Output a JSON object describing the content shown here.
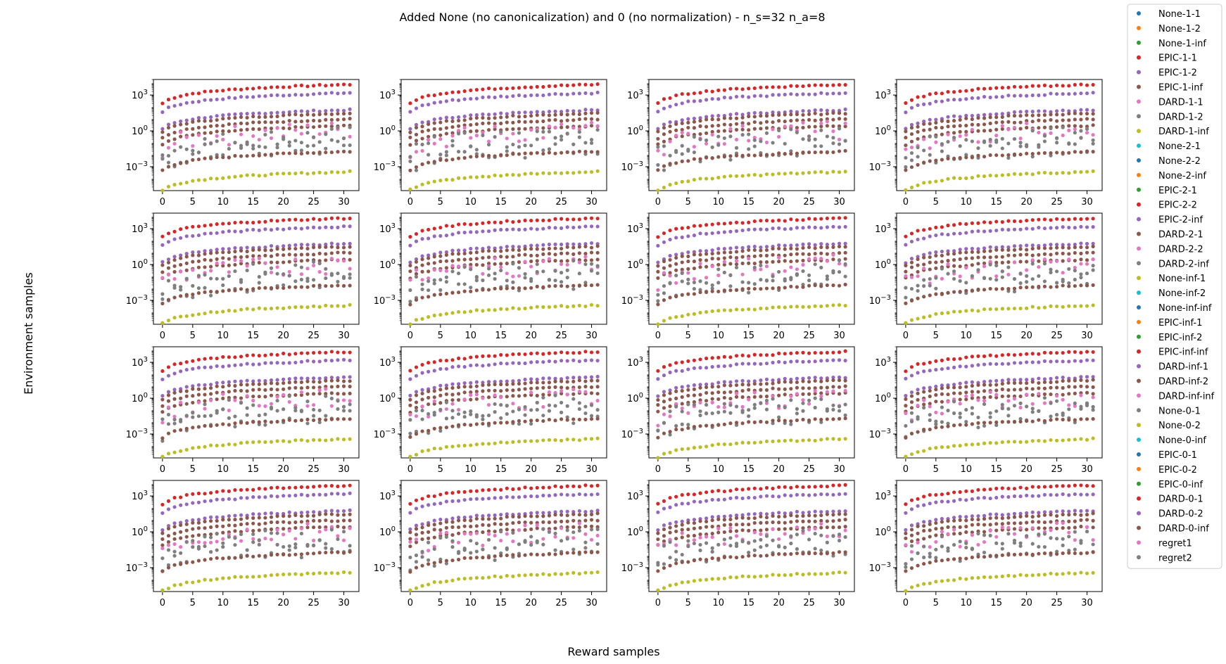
{
  "figure": {
    "title": "Added None (no canonicalization) and 0 (no normalization) - n_s=32 n_a=8",
    "xlabel": "Reward samples",
    "ylabel": "Environment samples"
  },
  "legend": {
    "placement": "top-right",
    "items": [
      {
        "label": "None-1-1",
        "color": "#1f77b4"
      },
      {
        "label": "None-1-2",
        "color": "#ff7f0e"
      },
      {
        "label": "None-1-inf",
        "color": "#2ca02c"
      },
      {
        "label": "EPIC-1-1",
        "color": "#d62728"
      },
      {
        "label": "EPIC-1-2",
        "color": "#9467bd"
      },
      {
        "label": "EPIC-1-inf",
        "color": "#8c564b"
      },
      {
        "label": "DARD-1-1",
        "color": "#e377c2"
      },
      {
        "label": "DARD-1-2",
        "color": "#7f7f7f"
      },
      {
        "label": "DARD-1-inf",
        "color": "#bcbd22"
      },
      {
        "label": "None-2-1",
        "color": "#17becf"
      },
      {
        "label": "None-2-2",
        "color": "#1f77b4"
      },
      {
        "label": "None-2-inf",
        "color": "#ff7f0e"
      },
      {
        "label": "EPIC-2-1",
        "color": "#2ca02c"
      },
      {
        "label": "EPIC-2-2",
        "color": "#d62728"
      },
      {
        "label": "EPIC-2-inf",
        "color": "#9467bd"
      },
      {
        "label": "DARD-2-1",
        "color": "#8c564b"
      },
      {
        "label": "DARD-2-2",
        "color": "#e377c2"
      },
      {
        "label": "DARD-2-inf",
        "color": "#7f7f7f"
      },
      {
        "label": "None-inf-1",
        "color": "#bcbd22"
      },
      {
        "label": "None-inf-2",
        "color": "#17becf"
      },
      {
        "label": "None-inf-inf",
        "color": "#1f77b4"
      },
      {
        "label": "EPIC-inf-1",
        "color": "#ff7f0e"
      },
      {
        "label": "EPIC-inf-2",
        "color": "#2ca02c"
      },
      {
        "label": "EPIC-inf-inf",
        "color": "#d62728"
      },
      {
        "label": "DARD-inf-1",
        "color": "#9467bd"
      },
      {
        "label": "DARD-inf-2",
        "color": "#8c564b"
      },
      {
        "label": "DARD-inf-inf",
        "color": "#e377c2"
      },
      {
        "label": "None-0-1",
        "color": "#7f7f7f"
      },
      {
        "label": "None-0-2",
        "color": "#bcbd22"
      },
      {
        "label": "None-0-inf",
        "color": "#17becf"
      },
      {
        "label": "EPIC-0-1",
        "color": "#1f77b4"
      },
      {
        "label": "EPIC-0-2",
        "color": "#ff7f0e"
      },
      {
        "label": "EPIC-0-inf",
        "color": "#2ca02c"
      },
      {
        "label": "DARD-0-1",
        "color": "#d62728"
      },
      {
        "label": "DARD-0-2",
        "color": "#9467bd"
      },
      {
        "label": "DARD-0-inf",
        "color": "#8c564b"
      },
      {
        "label": "regret1",
        "color": "#e377c2"
      },
      {
        "label": "regret2",
        "color": "#7f7f7f"
      }
    ]
  },
  "chart_data": {
    "type": "scatter",
    "grid": "4x4 subplots",
    "rows": 4,
    "cols": 4,
    "gridlines": false,
    "x": [
      0,
      1,
      2,
      3,
      4,
      5,
      6,
      7,
      8,
      9,
      10,
      11,
      12,
      13,
      14,
      15,
      16,
      17,
      18,
      19,
      20,
      21,
      22,
      23,
      24,
      25,
      26,
      27,
      28,
      29,
      30,
      31
    ],
    "xlim": [
      -1.5,
      32.5
    ],
    "xticks": [
      0,
      5,
      10,
      15,
      20,
      25,
      30
    ],
    "xtick_labels": [
      "0",
      "5",
      "10",
      "15",
      "20",
      "25",
      "30"
    ],
    "yscale": "log",
    "ylim": [
      1e-05,
      20000
    ],
    "yticks": [
      0.001,
      1,
      1000
    ],
    "ytick_labels": [
      "10^-3",
      "10^0",
      "10^3"
    ],
    "bands": [
      {
        "color": "#d62728",
        "base": 200,
        "growth": 1.0,
        "scatter": 0
      },
      {
        "color": "#9467bd",
        "base": 40,
        "growth": 1.0,
        "scatter": 0
      },
      {
        "color": "#9467bd",
        "base": 1.5,
        "growth": 1.0,
        "scatter": 0
      },
      {
        "color": "#8c564b",
        "base": 0.8,
        "growth": 1.0,
        "scatter": 0
      },
      {
        "color": "#8c564b",
        "base": 0.25,
        "growth": 1.0,
        "scatter": 0
      },
      {
        "color": "#8c564b",
        "base": 0.07,
        "growth": 1.0,
        "scatter": 0
      },
      {
        "color": "#e377c2",
        "base": 0.03,
        "growth": 1.0,
        "scatter": 1
      },
      {
        "color": "#7f7f7f",
        "base": 0.01,
        "growth": 1.0,
        "scatter": 1
      },
      {
        "color": "#7f7f7f",
        "base": 0.0015,
        "growth": 1.0,
        "scatter": 1
      },
      {
        "color": "#8c564b",
        "base": 0.0005,
        "growth": 1.0,
        "scatter": 0
      },
      {
        "color": "#bcbd22",
        "base": 1e-05,
        "growth": 1.0,
        "scatter": 0
      }
    ]
  }
}
